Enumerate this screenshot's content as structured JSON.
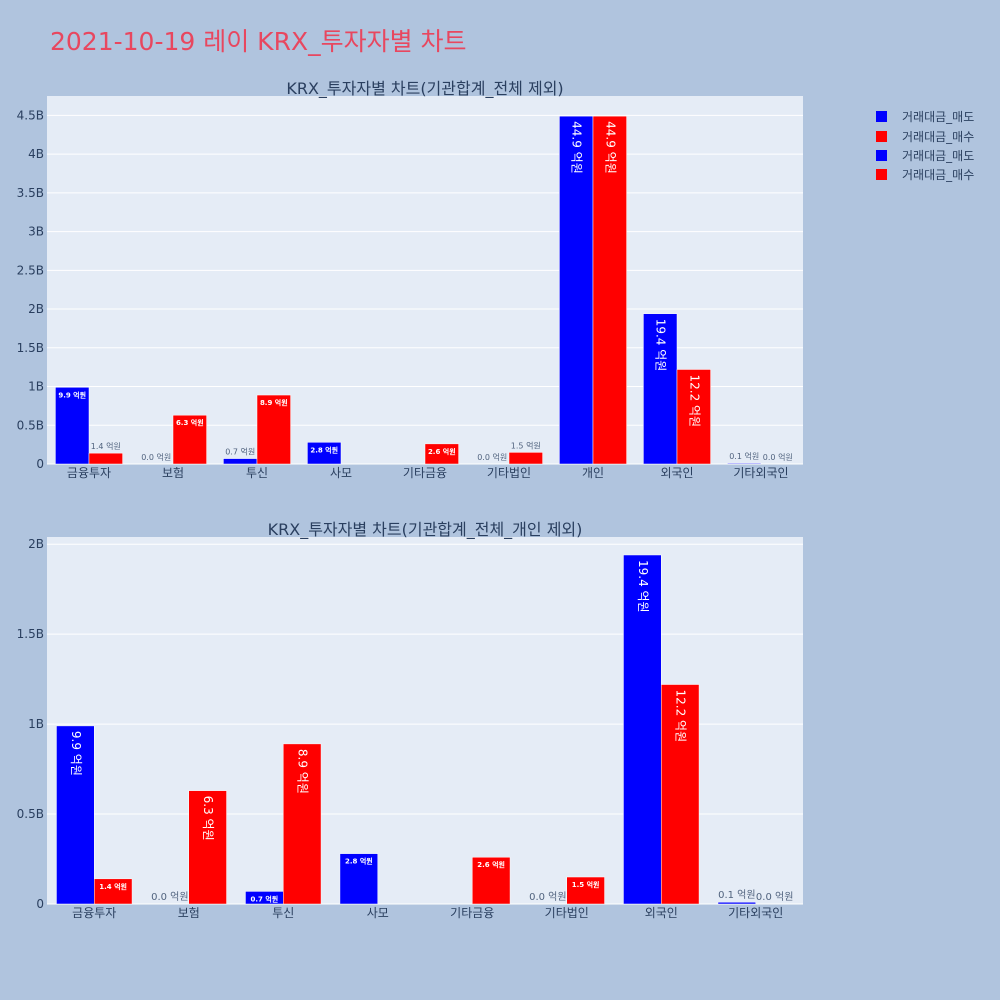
{
  "title": "2021-10-19 레이 KRX_투자자별 차트",
  "legend": [
    {
      "label": "거래대금_매도",
      "color": "#0000ff"
    },
    {
      "label": "거래대금_매수",
      "color": "#ff0000"
    },
    {
      "label": "거래대금_매도",
      "color": "#0000ff"
    },
    {
      "label": "거래대금_매수",
      "color": "#ff0000"
    }
  ],
  "chart_data": [
    {
      "type": "bar",
      "title": "KRX_투자자별 차트(기관합계_전체 제외)",
      "categories": [
        "금융투자",
        "보험",
        "투신",
        "사모",
        "기타금융",
        "기타법인",
        "개인",
        "외국인",
        "기타외국인"
      ],
      "ylim": [
        0,
        4750000000
      ],
      "yticks": [
        0,
        500000000,
        1000000000,
        1500000000,
        2000000000,
        2500000000,
        3000000000,
        3500000000,
        4000000000,
        4500000000
      ],
      "ytick_labels": [
        "0",
        "0.5B",
        "1B",
        "1.5B",
        "2B",
        "2.5B",
        "3B",
        "3.5B",
        "4B",
        "4.5B"
      ],
      "grid": true,
      "legend_position": "top-right",
      "series": [
        {
          "name": "거래대금_매도",
          "color": "#0000ff",
          "values": [
            990000000,
            0,
            70000000,
            280000000,
            0,
            0,
            4490000000,
            1940000000,
            10000000
          ],
          "labels": [
            "9.9 억원",
            "0.0 억원",
            "0.7 억원",
            "2.8 억원",
            "",
            "0.0 억원",
            "44.9 억원",
            "19.4 억원",
            "0.1 억원"
          ]
        },
        {
          "name": "거래대금_매수",
          "color": "#ff0000",
          "values": [
            140000000,
            630000000,
            890000000,
            0,
            260000000,
            150000000,
            4490000000,
            1220000000,
            0
          ],
          "labels": [
            "1.4 억원",
            "6.3 억원",
            "8.9 억원",
            "",
            "2.6 억원",
            "1.5 억원",
            "44.9 억원",
            "12.2 억원",
            "0.0 억원"
          ]
        }
      ]
    },
    {
      "type": "bar",
      "title": "KRX_투자자별 차트(기관합계_전체_개인 제외)",
      "categories": [
        "금융투자",
        "보험",
        "투신",
        "사모",
        "기타금융",
        "기타법인",
        "외국인",
        "기타외국인"
      ],
      "ylim": [
        0,
        2040000000
      ],
      "yticks": [
        0,
        500000000,
        1000000000,
        1500000000,
        2000000000
      ],
      "ytick_labels": [
        "0",
        "0.5B",
        "1B",
        "1.5B",
        "2B"
      ],
      "grid": true,
      "legend_position": "top-right",
      "series": [
        {
          "name": "거래대금_매도",
          "color": "#0000ff",
          "values": [
            990000000,
            0,
            70000000,
            280000000,
            0,
            0,
            1940000000,
            10000000
          ],
          "labels": [
            "9.9 억원",
            "0.0 억원",
            "0.7 억원",
            "2.8 억원",
            "",
            "0.0 억원",
            "19.4 억원",
            "0.1 억원"
          ]
        },
        {
          "name": "거래대금_매수",
          "color": "#ff0000",
          "values": [
            140000000,
            630000000,
            890000000,
            0,
            260000000,
            150000000,
            1220000000,
            0
          ],
          "labels": [
            "1.4 억원",
            "6.3 억원",
            "8.9 억원",
            "",
            "2.6 억원",
            "1.5 억원",
            "12.2 억원",
            "0.0 억원"
          ]
        }
      ]
    }
  ]
}
